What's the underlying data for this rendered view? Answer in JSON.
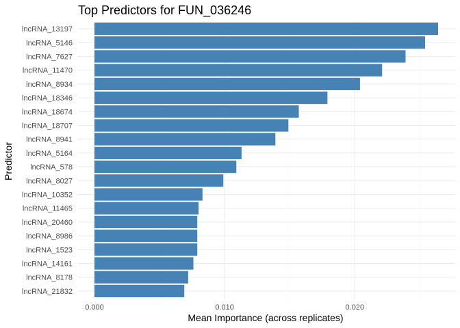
{
  "chart_data": {
    "type": "bar",
    "orientation": "horizontal",
    "title": "Top Predictors for FUN_036246",
    "xlabel": "Mean Importance (across replicates)",
    "ylabel": "Predictor",
    "xlim": [
      0,
      0.0264
    ],
    "xticks": [
      0.0,
      0.01,
      0.02
    ],
    "xtick_labels": [
      "0.000",
      "0.010",
      "0.020"
    ],
    "bar_color": "#4682B4",
    "grid": true,
    "categories": [
      "lncRNA_13197",
      "lncRNA_5146",
      "lncRNA_7627",
      "lncRNA_11470",
      "lncRNA_8934",
      "lncRNA_18346",
      "lncRNA_18674",
      "lncRNA_18707",
      "lncRNA_8941",
      "lncRNA_5164",
      "lncRNA_578",
      "lncRNA_8027",
      "lncRNA_10352",
      "lncRNA_11465",
      "lncRNA_20460",
      "lncRNA_8986",
      "lncRNA_1523",
      "lncRNA_14161",
      "lncRNA_8178",
      "lncRNA_21832"
    ],
    "values": [
      0.0264,
      0.0254,
      0.0239,
      0.0221,
      0.0204,
      0.0179,
      0.0157,
      0.0149,
      0.0139,
      0.0113,
      0.0109,
      0.0099,
      0.0083,
      0.008,
      0.0079,
      0.0079,
      0.0079,
      0.0076,
      0.0072,
      0.0069
    ]
  }
}
